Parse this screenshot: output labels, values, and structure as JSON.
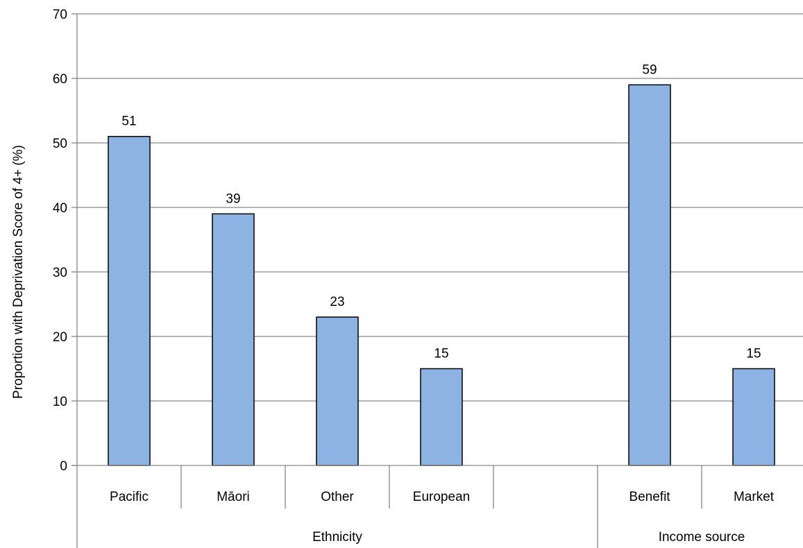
{
  "chart_data": {
    "type": "bar",
    "title": "",
    "ylabel": "Proportion with Deprivation Score of 4+ (%)",
    "xlabel": "",
    "ylim": [
      0,
      70
    ],
    "yticks": [
      0,
      10,
      20,
      30,
      40,
      50,
      60,
      70
    ],
    "grid": true,
    "legend": "none",
    "bar_color": "#8db3e2",
    "categories": [
      "Pacific",
      "Māori",
      "Other",
      "European",
      "",
      "Benefit",
      "Market"
    ],
    "values": [
      51,
      39,
      23,
      15,
      null,
      59,
      15
    ],
    "groups": [
      {
        "label": "Ethnicity",
        "categories": [
          "Pacific",
          "Māori",
          "Other",
          "European",
          ""
        ]
      },
      {
        "label": "Income source",
        "categories": [
          "Benefit",
          "Market"
        ]
      }
    ]
  }
}
